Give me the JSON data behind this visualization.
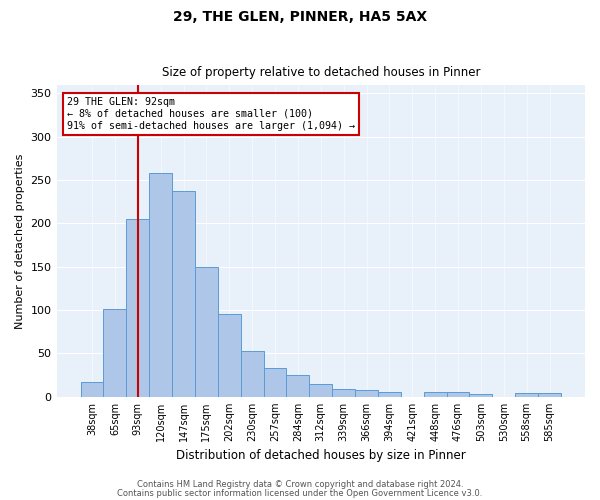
{
  "title1": "29, THE GLEN, PINNER, HA5 5AX",
  "title2": "Size of property relative to detached houses in Pinner",
  "xlabel": "Distribution of detached houses by size in Pinner",
  "ylabel": "Number of detached properties",
  "categories": [
    "38sqm",
    "65sqm",
    "93sqm",
    "120sqm",
    "147sqm",
    "175sqm",
    "202sqm",
    "230sqm",
    "257sqm",
    "284sqm",
    "312sqm",
    "339sqm",
    "366sqm",
    "394sqm",
    "421sqm",
    "448sqm",
    "476sqm",
    "503sqm",
    "530sqm",
    "558sqm",
    "585sqm"
  ],
  "values": [
    17,
    101,
    205,
    258,
    237,
    150,
    96,
    53,
    33,
    25,
    15,
    9,
    8,
    5,
    0,
    6,
    6,
    3,
    0,
    4,
    4
  ],
  "bar_color": "#aec6e8",
  "bar_edge_color": "#5b9bd5",
  "bar_width": 1.0,
  "vline_x_index": 2,
  "vline_color": "#cc0000",
  "annotation_text": "29 THE GLEN: 92sqm\n← 8% of detached houses are smaller (100)\n91% of semi-detached houses are larger (1,094) →",
  "annotation_box_color": "white",
  "annotation_box_edge": "#cc0000",
  "ylim": [
    0,
    360
  ],
  "yticks": [
    0,
    50,
    100,
    150,
    200,
    250,
    300,
    350
  ],
  "footer1": "Contains HM Land Registry data © Crown copyright and database right 2024.",
  "footer2": "Contains public sector information licensed under the Open Government Licence v3.0.",
  "bg_color": "#e8f0fa",
  "fig_bg_color": "#ffffff",
  "title1_fontsize": 10,
  "title2_fontsize": 8.5,
  "xlabel_fontsize": 8.5,
  "ylabel_fontsize": 8,
  "xtick_fontsize": 7,
  "ytick_fontsize": 8,
  "footer_fontsize": 6,
  "footer_color": "#555555"
}
